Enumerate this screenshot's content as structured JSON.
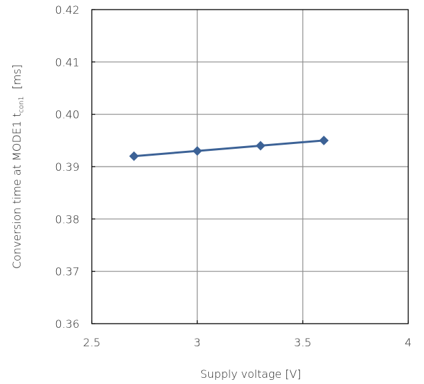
{
  "chart_data": {
    "type": "line",
    "title": "",
    "xlabel": "Supply voltage [V]",
    "ylabel": {
      "prefix": "Conversion time at MODE1 t",
      "subscript": "con1",
      "unit": "[ms]"
    },
    "xlim": [
      2.5,
      4
    ],
    "ylim": [
      0.36,
      0.42
    ],
    "x_ticks": [
      2.5,
      3,
      3.5,
      4
    ],
    "x_tick_labels": [
      "2.5",
      "3",
      "3.5",
      "4"
    ],
    "y_ticks": [
      0.36,
      0.37,
      0.38,
      0.39,
      0.4,
      0.41,
      0.42
    ],
    "y_tick_labels": [
      "0.36",
      "0.37",
      "0.38",
      "0.39",
      "0.40",
      "0.41",
      "0.42"
    ],
    "grid": true,
    "series": [
      {
        "x": [
          2.7,
          3.0,
          3.3,
          3.6
        ],
        "y": [
          0.392,
          0.393,
          0.394,
          0.395
        ],
        "color": "#3c6296",
        "marker": "diamond"
      }
    ],
    "colors": {
      "grid": "#8c8c8c",
      "axis": "#000000"
    }
  }
}
